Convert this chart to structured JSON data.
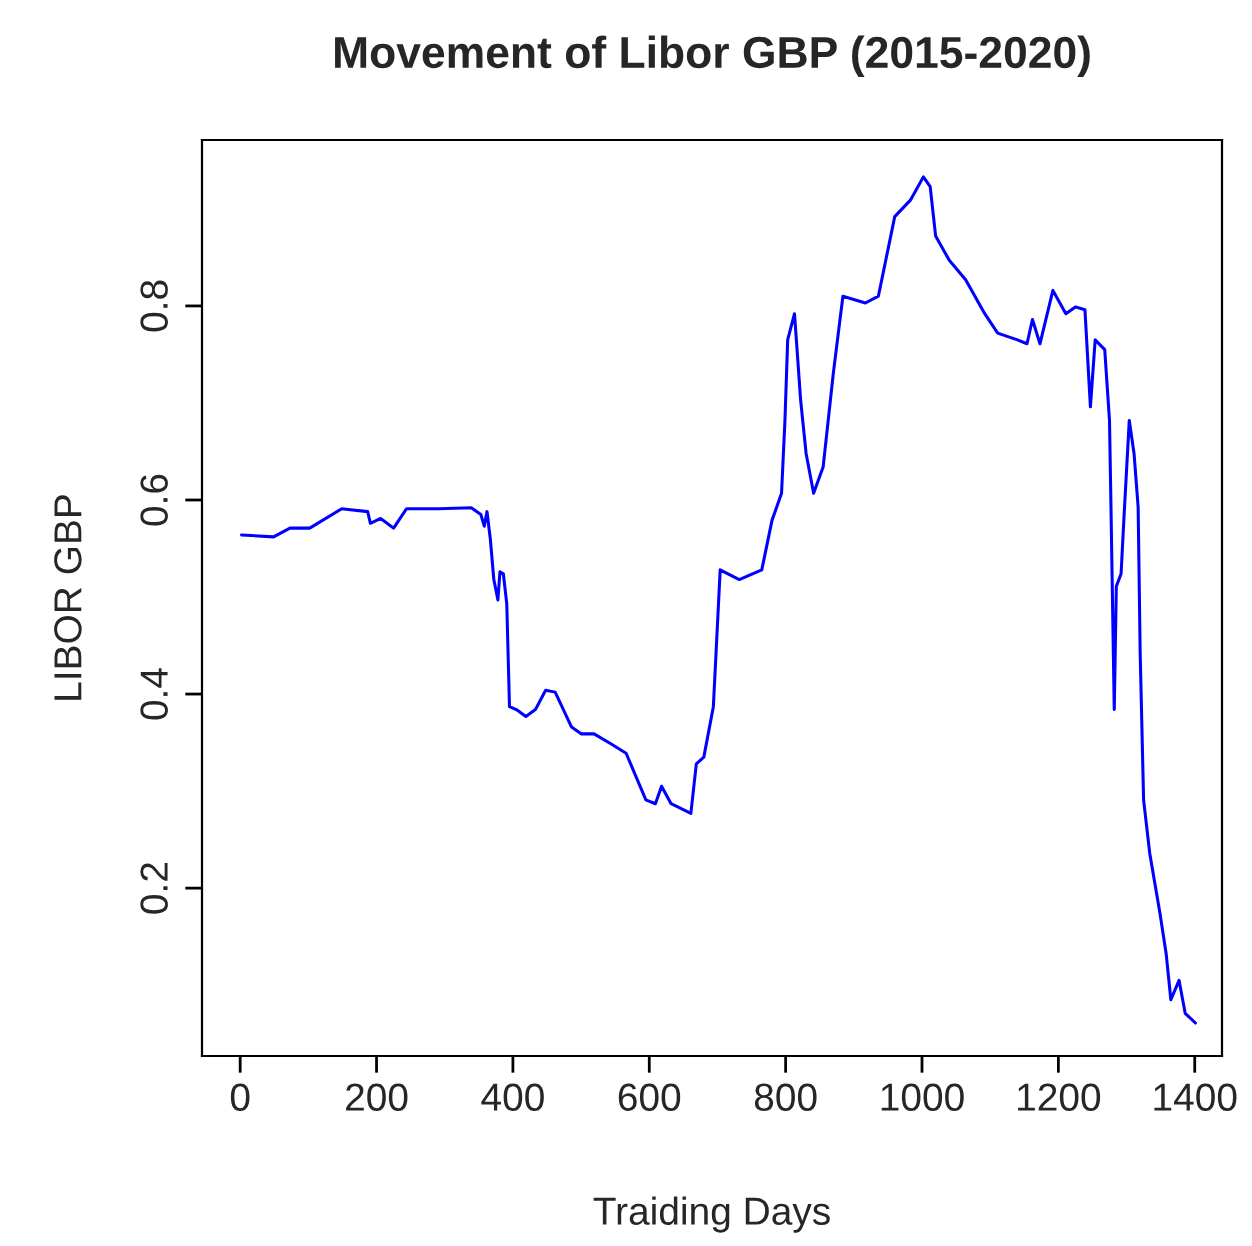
{
  "chart_data": {
    "type": "line",
    "title": "Movement of Libor GBP (2015-2020)",
    "xlabel": "Traiding Days",
    "ylabel": "LIBOR GBP",
    "xlim": [
      -56,
      1440
    ],
    "ylim": [
      0.027,
      0.971
    ],
    "xticks": [
      0,
      200,
      400,
      600,
      800,
      1000,
      1200,
      1400
    ],
    "yticks": [
      0.2,
      0.4,
      0.6,
      0.8
    ],
    "grid": false,
    "marker": "none",
    "line_style": "solid",
    "series": [
      {
        "color": "#0000ff",
        "x": [
          2,
          49,
          73,
          102,
          149,
          187,
          191,
          206,
          225,
          244,
          291,
          339,
          353,
          358,
          362,
          367,
          372,
          378,
          381,
          386,
          391,
          395,
          405,
          419,
          433,
          448,
          462,
          486,
          500,
          519,
          543,
          566,
          595,
          609,
          618,
          632,
          661,
          669,
          680,
          694,
          704,
          732,
          765,
          780,
          794,
          799,
          803,
          813,
          822,
          830,
          841,
          855,
          870,
          884,
          917,
          936,
          960,
          983,
          1002,
          1012,
          1020,
          1040,
          1064,
          1092,
          1111,
          1140,
          1154,
          1162,
          1173,
          1192,
          1211,
          1225,
          1239,
          1247,
          1254,
          1268,
          1275,
          1277,
          1282,
          1285,
          1292,
          1296,
          1304,
          1311,
          1317,
          1320,
          1325,
          1334,
          1349,
          1358,
          1365,
          1377,
          1386,
          1401
        ],
        "values": [
          0.564,
          0.562,
          0.571,
          0.571,
          0.591,
          0.588,
          0.576,
          0.581,
          0.571,
          0.591,
          0.591,
          0.592,
          0.585,
          0.573,
          0.588,
          0.559,
          0.518,
          0.497,
          0.526,
          0.524,
          0.493,
          0.387,
          0.384,
          0.377,
          0.384,
          0.404,
          0.402,
          0.366,
          0.359,
          0.359,
          0.349,
          0.339,
          0.291,
          0.287,
          0.305,
          0.287,
          0.277,
          0.328,
          0.335,
          0.387,
          0.528,
          0.518,
          0.528,
          0.579,
          0.607,
          0.682,
          0.765,
          0.792,
          0.703,
          0.648,
          0.607,
          0.634,
          0.731,
          0.81,
          0.803,
          0.81,
          0.892,
          0.909,
          0.933,
          0.923,
          0.872,
          0.847,
          0.827,
          0.792,
          0.772,
          0.765,
          0.761,
          0.786,
          0.761,
          0.816,
          0.792,
          0.799,
          0.796,
          0.696,
          0.765,
          0.755,
          0.682,
          0.6,
          0.384,
          0.511,
          0.524,
          0.579,
          0.682,
          0.648,
          0.593,
          0.442,
          0.291,
          0.236,
          0.174,
          0.133,
          0.085,
          0.105,
          0.071,
          0.061
        ]
      }
    ]
  }
}
